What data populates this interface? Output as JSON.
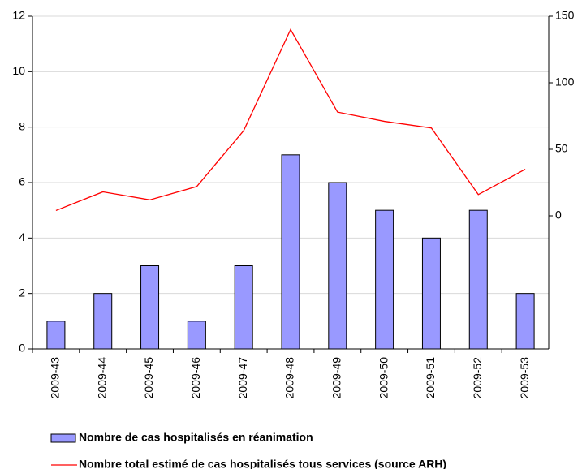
{
  "chart_data": {
    "type": "bar_line",
    "categories": [
      "2009-43",
      "2009-44",
      "2009-45",
      "2009-46",
      "2009-47",
      "2009-48",
      "2009-49",
      "2009-50",
      "2009-51",
      "2009-52",
      "2009-53"
    ],
    "series": [
      {
        "name": "Nombre de cas hospitalisés en réanimation",
        "type": "bar",
        "color": "#9999ff",
        "values": [
          1,
          2,
          3,
          1,
          3,
          7,
          6,
          5,
          4,
          5,
          2
        ]
      },
      {
        "name": "Nombre total estimé de cas hospitalisés tous services (source ARH)",
        "type": "line",
        "axis": "y2",
        "color": "#ff0000",
        "values": [
          4,
          18,
          12,
          22,
          64,
          140,
          78,
          71,
          66,
          16,
          35
        ]
      }
    ],
    "ylim": [
      0,
      12
    ],
    "yticks": [
      0,
      2,
      4,
      6,
      8,
      10,
      12
    ],
    "y2lim": [
      -100,
      150
    ],
    "y2ticks": [
      0,
      50,
      100,
      150
    ],
    "grid": true,
    "legend": "bottom"
  }
}
